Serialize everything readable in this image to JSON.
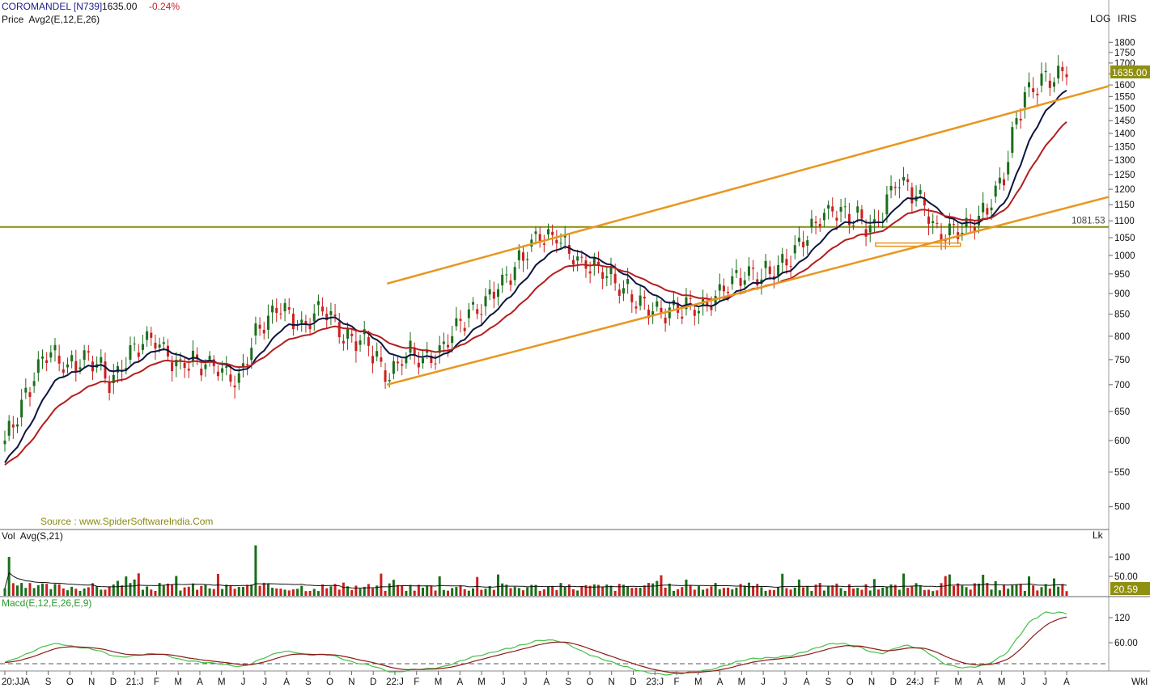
{
  "header": {
    "symbol": "COROMANDEL [N739]",
    "last": "1635.00",
    "change": "-0.24%",
    "indicator_line": "Price  Avg2(E,12,E,26)",
    "log_label": "LOG",
    "theme_label": "IRIS",
    "source": "Source : www.SpiderSoftwareIndia.Com",
    "period_label": "Wkl"
  },
  "colors": {
    "up": "#1a6e1a",
    "down": "#cc1f1f",
    "ema12": "#0d1540",
    "ema26": "#b41e1e",
    "trend": "#e8961e",
    "horizontal": "#8a8a10",
    "macd": "#44c044",
    "signal": "#8b1a1a",
    "price_tag": "#8f8f10"
  },
  "volume_panel": {
    "title": "Vol  Avg(S,21)",
    "unit_label": "Lk",
    "last_value": "20.59",
    "ticks": [
      "100",
      "50.00"
    ]
  },
  "macd_panel": {
    "title": "Macd(E,12,E,26,E,9)",
    "ticks": [
      "120",
      "60.00"
    ]
  },
  "chart_data": {
    "type": "candlestick",
    "scale": "log",
    "ylim": [
      480,
      1850
    ],
    "y_ticks": [
      500,
      550,
      600,
      650,
      700,
      750,
      800,
      850,
      900,
      950,
      1000,
      1050,
      1100,
      1150,
      1200,
      1250,
      1300,
      1350,
      1400,
      1450,
      1500,
      1550,
      1600,
      1650,
      1700,
      1750,
      1800
    ],
    "last_price_label": "1635.00",
    "horizontal_level": {
      "value": 1081.53,
      "label": "1081.53"
    },
    "x_tick_labels": [
      "20:JJ",
      "A",
      "S",
      "O",
      "N",
      "D",
      "21:J",
      "F",
      "M",
      "A",
      "M",
      "J",
      "J",
      "A",
      "S",
      "O",
      "N",
      "D",
      "22:J",
      "F",
      "M",
      "A",
      "M",
      "J",
      "J",
      "A",
      "S",
      "O",
      "N",
      "D",
      "23:J",
      "F",
      "M",
      "A",
      "M",
      "J",
      "J",
      "A",
      "S",
      "O",
      "N",
      "D",
      "24:J",
      "F",
      "M",
      "A",
      "M",
      "J",
      "J",
      "A"
    ],
    "x_start": "2020-06",
    "x_end": "2024-08",
    "price_anchors": [
      [
        "2020-06",
        600
      ],
      [
        "2020-07",
        680
      ],
      [
        "2020-08",
        770
      ],
      [
        "2020-09",
        735
      ],
      [
        "2020-10",
        760
      ],
      [
        "2020-11",
        700
      ],
      [
        "2020-12",
        770
      ],
      [
        "2021-01",
        800
      ],
      [
        "2021-02",
        740
      ],
      [
        "2021-03",
        745
      ],
      [
        "2021-04",
        735
      ],
      [
        "2021-05",
        710
      ],
      [
        "2021-06",
        820
      ],
      [
        "2021-07",
        870
      ],
      [
        "2021-08",
        820
      ],
      [
        "2021-09",
        860
      ],
      [
        "2021-10",
        800
      ],
      [
        "2021-11",
        790
      ],
      [
        "2021-12",
        715
      ],
      [
        "2022-01",
        765
      ],
      [
        "2022-02",
        745
      ],
      [
        "2022-03",
        800
      ],
      [
        "2022-04",
        860
      ],
      [
        "2022-05",
        900
      ],
      [
        "2022-06",
        970
      ],
      [
        "2022-07",
        1050
      ],
      [
        "2022-08",
        1060
      ],
      [
        "2022-09",
        985
      ],
      [
        "2022-10",
        960
      ],
      [
        "2022-11",
        920
      ],
      [
        "2022-12",
        880
      ],
      [
        "2023-01",
        850
      ],
      [
        "2023-02",
        870
      ],
      [
        "2023-03",
        860
      ],
      [
        "2023-04",
        920
      ],
      [
        "2023-05",
        945
      ],
      [
        "2023-06",
        950
      ],
      [
        "2023-07",
        990
      ],
      [
        "2023-08",
        1080
      ],
      [
        "2023-09",
        1140
      ],
      [
        "2023-10",
        1110
      ],
      [
        "2023-11",
        1080
      ],
      [
        "2023-12",
        1230
      ],
      [
        "2024-01",
        1180
      ],
      [
        "2024-02",
        1060
      ],
      [
        "2024-03",
        1080
      ],
      [
        "2024-04",
        1110
      ],
      [
        "2024-05",
        1240
      ],
      [
        "2024-06",
        1560
      ],
      [
        "2024-07",
        1630
      ],
      [
        "2024-08",
        1635
      ]
    ],
    "trendlines": [
      {
        "name": "upper channel",
        "from": [
          "2021-12",
          925
        ],
        "to": [
          "2024-08",
          1545
        ]
      },
      {
        "name": "lower channel",
        "from": [
          "2021-12",
          700
        ],
        "to": [
          "2024-08",
          1140
        ]
      },
      {
        "name": "support box",
        "from": [
          "2023-11",
          1030
        ],
        "to": [
          "2024-03",
          1030
        ]
      }
    ]
  }
}
